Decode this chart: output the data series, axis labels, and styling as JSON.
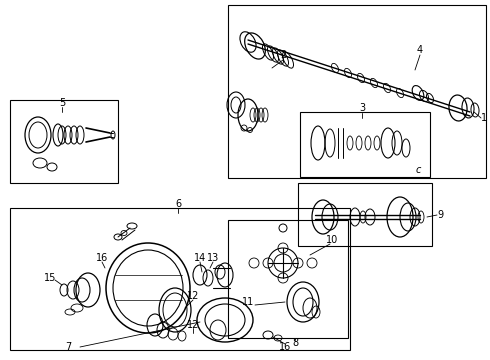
{
  "bg": "#ffffff",
  "lc": "#000000",
  "figsize": [
    4.9,
    3.6
  ],
  "dpi": 100
}
